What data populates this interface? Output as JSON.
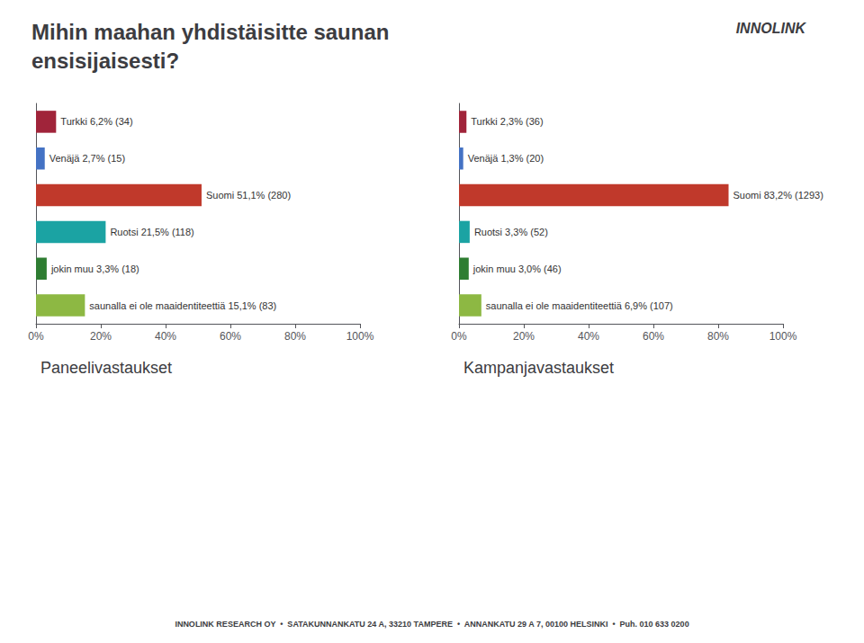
{
  "title": "Mihin maahan yhdistäisitte saunan\nensisijaisesti?",
  "annotations": [
    "INNOLINK",
    "INNOLINK RESEARCH OY  •  SATAKUNNANKATU 24 A, 33210 TAMPERE  •  ANNANKATU 29 A 7, 00100 HELSINKI  •  Puh. 010 633 0200"
  ],
  "chart_data": [
    {
      "type": "bar",
      "orientation": "horizontal",
      "title": "Paneelivastaukset",
      "categories": [
        "Turkki",
        "Venäjä",
        "Suomi",
        "Ruotsi",
        "jokin muu",
        "saunalla ei ole maaidentiteettiä"
      ],
      "values": [
        6.2,
        2.7,
        51.1,
        21.5,
        3.3,
        15.1
      ],
      "value_labels": [
        "Turkki 6,2% (34)",
        "Venäjä 2,7% (15)",
        "Suomi 51,1% (280)",
        "Ruotsi 21,5% (118)",
        "jokin muu 3,3% (18)",
        "saunalla ei ole maaidentiteettiä 15,1% (83)"
      ],
      "data_labels": true,
      "colors": [
        "#A0243A",
        "#4472C4",
        "#C0392B",
        "#1BA3A3",
        "#2E7D32",
        "#8DB843"
      ],
      "xlim": [
        0,
        100
      ],
      "xticks": [
        {
          "value": 0,
          "label": "0%"
        },
        {
          "value": 20,
          "label": "20%"
        },
        {
          "value": 40,
          "label": "40%"
        },
        {
          "value": 60,
          "label": "60%"
        },
        {
          "value": 80,
          "label": "80%"
        },
        {
          "value": 100,
          "label": "100%"
        }
      ],
      "grid": false,
      "tick_labels": "x"
    },
    {
      "type": "bar",
      "orientation": "horizontal",
      "title": "Kampanjavastaukset",
      "categories": [
        "Turkki",
        "Venäjä",
        "Suomi",
        "Ruotsi",
        "jokin muu",
        "saunalla ei ole maaidentiteettiä"
      ],
      "values": [
        2.3,
        1.3,
        83.2,
        3.3,
        3.0,
        6.9
      ],
      "value_labels": [
        "Turkki 2,3% (36)",
        "Venäjä 1,3% (20)",
        "Suomi 83,2% (1293)",
        "Ruotsi 3,3% (52)",
        "jokin muu 3,0% (46)",
        "saunalla ei ole maaidentiteettiä 6,9% (107)"
      ],
      "data_labels": true,
      "colors": [
        "#A0243A",
        "#4472C4",
        "#C0392B",
        "#1BA3A3",
        "#2E7D32",
        "#8DB843"
      ],
      "xlim": [
        0,
        100
      ],
      "xticks": [
        {
          "value": 0,
          "label": "0%"
        },
        {
          "value": 20,
          "label": "20%"
        },
        {
          "value": 40,
          "label": "40%"
        },
        {
          "value": 60,
          "label": "60%"
        },
        {
          "value": 80,
          "label": "80%"
        },
        {
          "value": 100,
          "label": "100%"
        }
      ],
      "grid": false,
      "tick_labels": "x"
    }
  ]
}
